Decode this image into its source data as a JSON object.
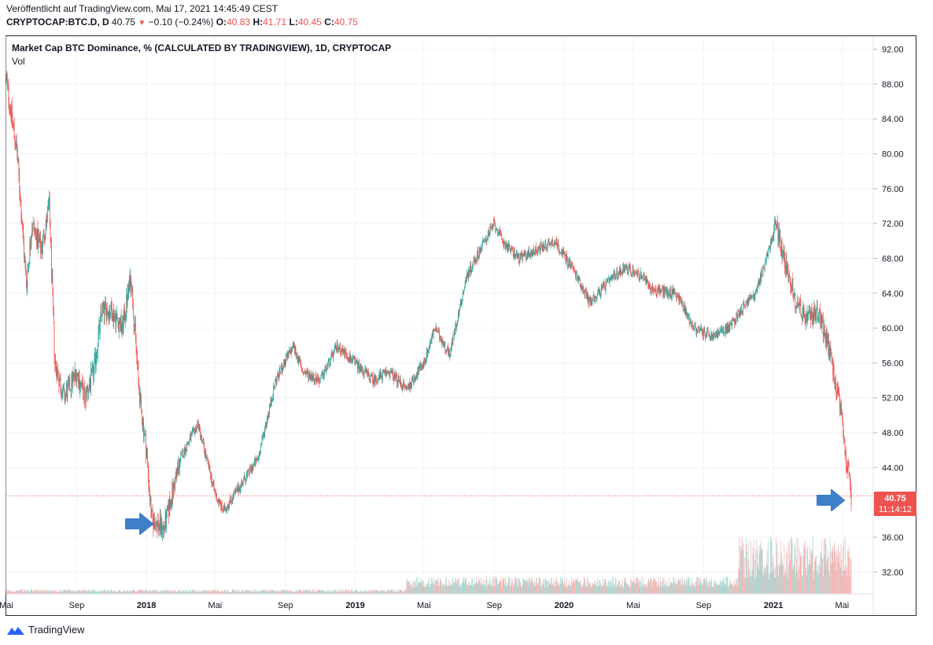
{
  "header": {
    "published": "Veröffentlicht auf TradingView.com, Mai 17, 2021 14:45:49 CEST",
    "symbol": "CRYPTOCAP:BTC.D, D",
    "last": "40.75",
    "change_arrow": "▼",
    "change": "−0.10 (−0.24%)",
    "o_label": "O:",
    "o_value": "40.83",
    "h_label": "H:",
    "h_value": "41.71",
    "l_label": "L:",
    "l_value": "40.45",
    "c_label": "C:",
    "c_value": "40.75"
  },
  "legend": {
    "title": "Market Cap BTC Dominance, % (CALCULATED BY TRADINGVIEW), 1D, CRYPTOCAP",
    "volume": "Vol"
  },
  "price_badge": {
    "price": "40.75",
    "countdown": "11:14:12"
  },
  "footer": {
    "brand": "TradingView"
  },
  "colors": {
    "up": "#26a69a",
    "down": "#ef5350",
    "arrow": "#3d7fc9",
    "grid": "#f0f3fa",
    "badge": "#ef5350"
  },
  "chart_data": {
    "type": "candlestick",
    "ylim": [
      29.5,
      93.5
    ],
    "y_ticks": [
      "92.00",
      "88.00",
      "84.00",
      "80.00",
      "76.00",
      "72.00",
      "68.00",
      "64.00",
      "60.00",
      "56.00",
      "52.00",
      "48.00",
      "44.00",
      "36.00",
      "32.00"
    ],
    "x_ticks": [
      "Mai",
      "Sep",
      "2018",
      "Mai",
      "Sep",
      "2019",
      "Mai",
      "Sep",
      "2020",
      "Mai",
      "Sep",
      "2021",
      "Mai"
    ],
    "last_price": 40.75,
    "approx_close_path": [
      [
        "2017-05-01",
        88.5
      ],
      [
        "2017-05-20",
        80
      ],
      [
        "2017-06-05",
        65
      ],
      [
        "2017-06-15",
        72
      ],
      [
        "2017-07-01",
        69
      ],
      [
        "2017-07-15",
        74
      ],
      [
        "2017-07-25",
        56
      ],
      [
        "2017-08-10",
        52
      ],
      [
        "2017-09-01",
        55
      ],
      [
        "2017-09-15",
        52
      ],
      [
        "2017-10-01",
        55
      ],
      [
        "2017-10-15",
        62
      ],
      [
        "2017-11-01",
        62
      ],
      [
        "2017-11-20",
        60
      ],
      [
        "2017-12-05",
        66
      ],
      [
        "2017-12-20",
        52
      ],
      [
        "2018-01-01",
        46
      ],
      [
        "2018-01-10",
        38
      ],
      [
        "2018-02-01",
        37
      ],
      [
        "2018-03-01",
        45
      ],
      [
        "2018-04-01",
        49
      ],
      [
        "2018-05-01",
        41
      ],
      [
        "2018-05-15",
        39
      ],
      [
        "2018-06-15",
        42
      ],
      [
        "2018-07-15",
        45
      ],
      [
        "2018-08-15",
        54
      ],
      [
        "2018-09-15",
        58
      ],
      [
        "2018-10-01",
        55
      ],
      [
        "2018-11-01",
        54
      ],
      [
        "2018-12-01",
        58
      ],
      [
        "2019-01-01",
        56
      ],
      [
        "2019-02-01",
        54
      ],
      [
        "2019-03-01",
        55
      ],
      [
        "2019-04-01",
        53
      ],
      [
        "2019-05-01",
        56
      ],
      [
        "2019-05-20",
        60
      ],
      [
        "2019-06-15",
        57
      ],
      [
        "2019-07-15",
        66
      ],
      [
        "2019-08-15",
        70
      ],
      [
        "2019-09-01",
        72
      ],
      [
        "2019-09-15",
        70
      ],
      [
        "2019-10-15",
        68
      ],
      [
        "2019-11-15",
        69
      ],
      [
        "2019-12-15",
        70
      ],
      [
        "2020-01-15",
        67
      ],
      [
        "2020-02-15",
        63
      ],
      [
        "2020-03-15",
        65
      ],
      [
        "2020-04-15",
        67
      ],
      [
        "2020-05-15",
        66
      ],
      [
        "2020-06-01",
        64.5
      ],
      [
        "2020-07-15",
        64
      ],
      [
        "2020-08-15",
        60
      ],
      [
        "2020-09-15",
        59
      ],
      [
        "2020-10-15",
        60
      ],
      [
        "2020-11-15",
        63
      ],
      [
        "2020-12-01",
        64
      ],
      [
        "2020-12-20",
        68
      ],
      [
        "2021-01-05",
        72
      ],
      [
        "2021-01-20",
        68
      ],
      [
        "2021-02-10",
        63
      ],
      [
        "2021-03-01",
        61
      ],
      [
        "2021-03-20",
        62
      ],
      [
        "2021-04-10",
        57
      ],
      [
        "2021-04-25",
        52
      ],
      [
        "2021-05-10",
        44
      ],
      [
        "2021-05-17",
        40.75
      ]
    ]
  }
}
